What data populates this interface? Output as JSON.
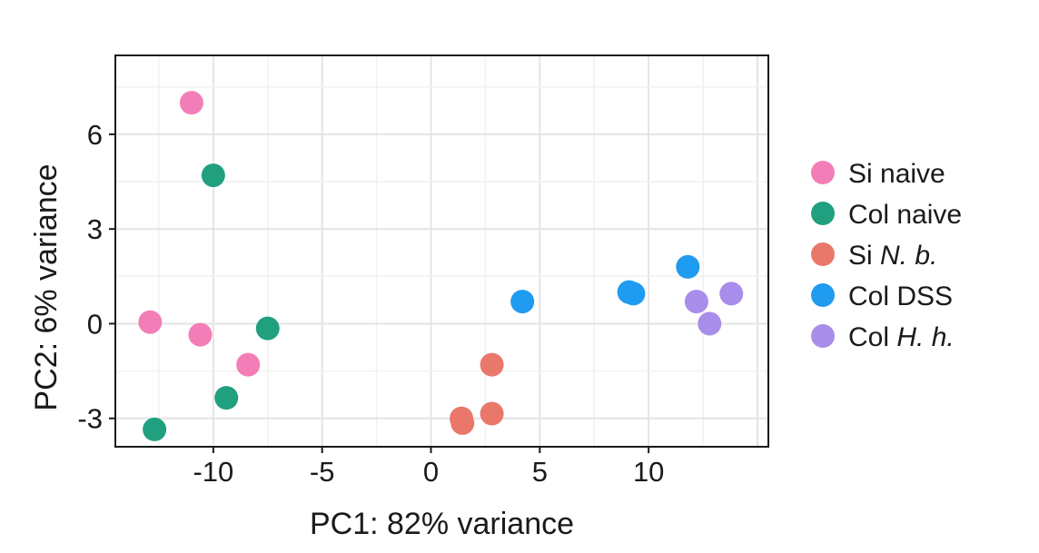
{
  "chart_data": {
    "type": "scatter",
    "title": "",
    "xlabel": "PC1: 82% variance",
    "ylabel": "PC2: 6% variance",
    "xlim": [
      -14.5,
      15.5
    ],
    "ylim": [
      -3.9,
      8.5
    ],
    "x_ticks": [
      -10,
      -5,
      0,
      5,
      10
    ],
    "y_ticks": [
      -3,
      0,
      3,
      6
    ],
    "x_tick_labels": [
      "-10",
      "-5",
      "0",
      "5",
      "10"
    ],
    "y_tick_labels": [
      "-3",
      "0",
      "3",
      "6"
    ],
    "grid": true,
    "legend_position": "right",
    "series": [
      {
        "name": "Si naive",
        "name_parts": [
          {
            "text": "Si naive",
            "italic": false
          }
        ],
        "color": "#F37EB7",
        "points": [
          {
            "x": -11.0,
            "y": 7.0
          },
          {
            "x": -12.9,
            "y": 0.05
          },
          {
            "x": -10.6,
            "y": -0.35
          },
          {
            "x": -8.4,
            "y": -1.3
          }
        ]
      },
      {
        "name": "Col naive",
        "name_parts": [
          {
            "text": "Col naive",
            "italic": false
          }
        ],
        "color": "#20A07F",
        "points": [
          {
            "x": -10.0,
            "y": 4.7
          },
          {
            "x": -7.5,
            "y": -0.15
          },
          {
            "x": -9.4,
            "y": -2.35
          },
          {
            "x": -12.7,
            "y": -3.35
          }
        ]
      },
      {
        "name": "Si N. b.",
        "name_parts": [
          {
            "text": "Si ",
            "italic": false
          },
          {
            "text": "N. b.",
            "italic": true
          }
        ],
        "color": "#E9786B",
        "points": [
          {
            "x": 2.8,
            "y": -1.3
          },
          {
            "x": 2.8,
            "y": -2.85
          },
          {
            "x": 1.4,
            "y": -3.0
          },
          {
            "x": 1.45,
            "y": -3.15
          }
        ]
      },
      {
        "name": "Col DSS",
        "name_parts": [
          {
            "text": "Col DSS",
            "italic": false
          }
        ],
        "color": "#1F9BF0",
        "points": [
          {
            "x": 4.2,
            "y": 0.7
          },
          {
            "x": 9.1,
            "y": 1.0
          },
          {
            "x": 9.3,
            "y": 0.95
          },
          {
            "x": 11.8,
            "y": 1.8
          }
        ]
      },
      {
        "name": "Col H. h.",
        "name_parts": [
          {
            "text": "Col ",
            "italic": false
          },
          {
            "text": "H. h.",
            "italic": true
          }
        ],
        "color": "#A98DEB",
        "points": [
          {
            "x": 12.2,
            "y": 0.7
          },
          {
            "x": 13.8,
            "y": 0.95
          },
          {
            "x": 12.8,
            "y": 0.0
          }
        ]
      }
    ]
  }
}
